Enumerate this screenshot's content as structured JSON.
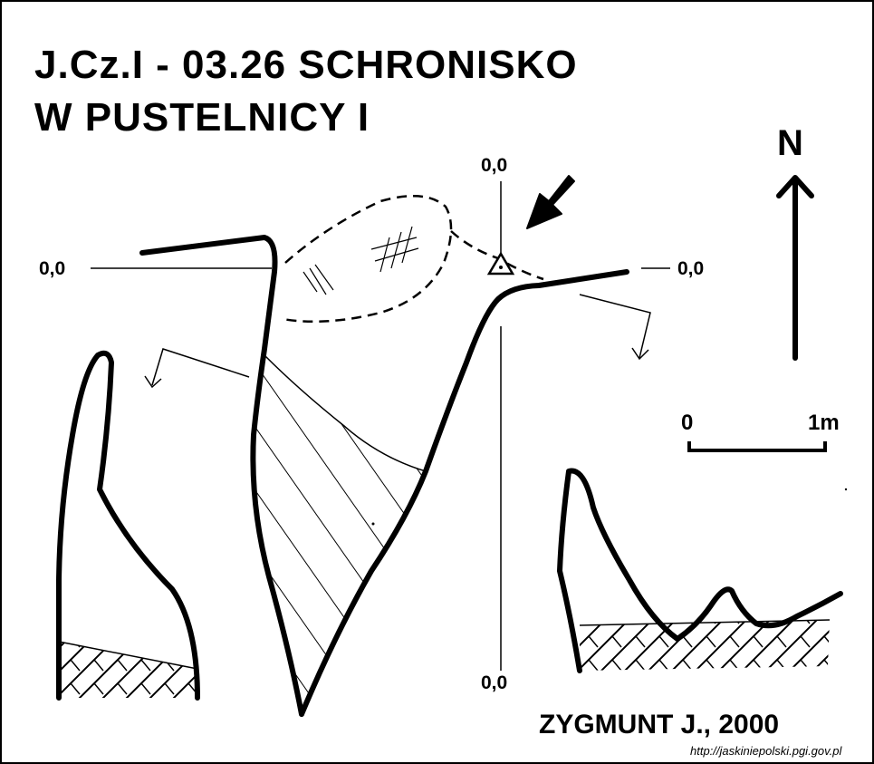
{
  "title": {
    "line1": "J.Cz.I - 03.26  SCHRONISKO",
    "line2": "W PUSTELNICY I"
  },
  "north_label": "N",
  "datums": {
    "top": "0,0",
    "left": "0,0",
    "right": "0,0",
    "bottom": "0,0"
  },
  "scale": {
    "start": "0",
    "end": "1m"
  },
  "author": "ZYGMUNT J., 2000",
  "source": "http://jaskiniepolski.pgi.gov.pl",
  "colors": {
    "ink": "#000000",
    "paper": "#ffffff"
  },
  "symbols": {
    "entrance_arrow": "arrow-icon",
    "survey_point": "triangle-station-icon",
    "north": "north-arrow-icon"
  }
}
